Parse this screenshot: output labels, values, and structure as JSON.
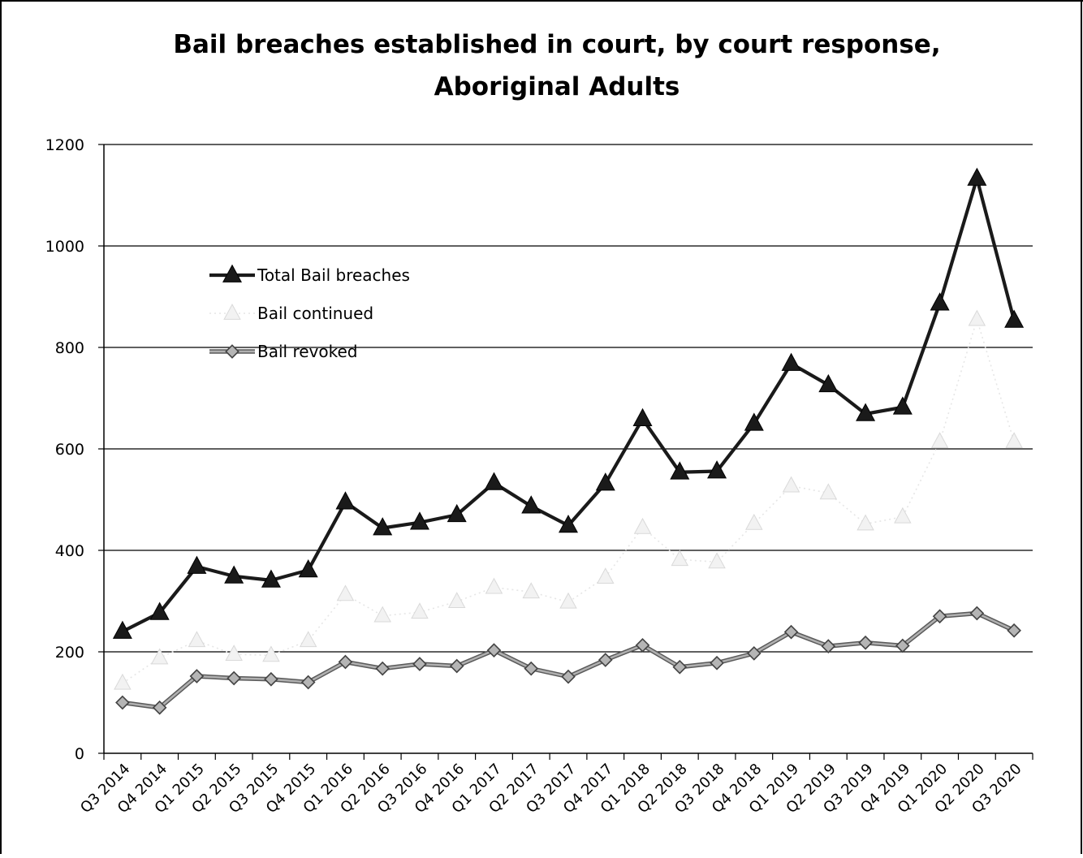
{
  "chart_data": {
    "type": "line",
    "title": "Bail breaches established in court, by court response,",
    "subtitle": "Aboriginal Adults",
    "xlabel": "",
    "ylabel": "",
    "ylim": [
      0,
      1200
    ],
    "yticks": [
      "0",
      "200",
      "400",
      "600",
      "800",
      "1000",
      "1200"
    ],
    "categories": [
      "Q3 2014",
      "Q4 2014",
      "Q1 2015",
      "Q2 2015",
      "Q3 2015",
      "Q4 2015",
      "Q1 2016",
      "Q2 2016",
      "Q3 2016",
      "Q4 2016",
      "Q1 2017",
      "Q2 2017",
      "Q3 2017",
      "Q4 2017",
      "Q1 2018",
      "Q2 2018",
      "Q3 2018",
      "Q4 2018",
      "Q1 2019",
      "Q2 2019",
      "Q3 2019",
      "Q4 2019",
      "Q1 2020",
      "Q2 2020",
      "Q3 2020"
    ],
    "grid": true,
    "legend_position": "top-left",
    "series": [
      {
        "name": "Total Bail breaches",
        "color": "#1a1a1a",
        "marker": "triangle",
        "values": [
          240,
          277,
          368,
          349,
          341,
          361,
          495,
          444,
          455,
          470,
          533,
          487,
          449,
          532,
          659,
          554,
          556,
          650,
          768,
          726,
          669,
          682,
          887,
          1133,
          853
        ]
      },
      {
        "name": "Bail continued",
        "color": "#e6e6e6",
        "marker": "triangle",
        "values": [
          138,
          188,
          222,
          195,
          193,
          222,
          313,
          271,
          278,
          299,
          327,
          318,
          298,
          347,
          445,
          382,
          377,
          453,
          527,
          513,
          452,
          466,
          614,
          855,
          614
        ]
      },
      {
        "name": "Bail revoked",
        "color": "#8c8c8c",
        "marker": "diamond",
        "values": [
          100,
          90,
          152,
          148,
          146,
          140,
          180,
          167,
          176,
          172,
          203,
          167,
          151,
          184,
          213,
          170,
          178,
          197,
          239,
          211,
          218,
          212,
          270,
          276,
          242
        ]
      }
    ]
  }
}
